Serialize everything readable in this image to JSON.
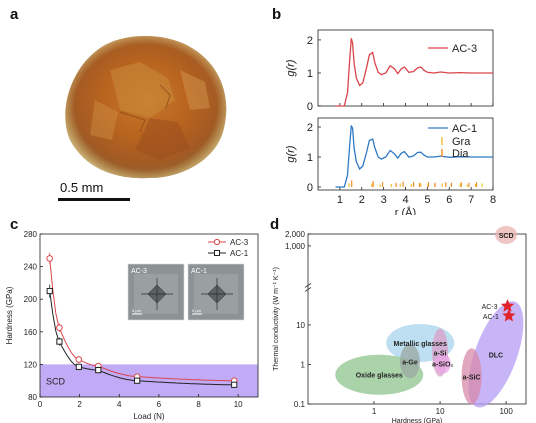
{
  "panels": {
    "a": {
      "label": "a",
      "scale_bar_text": "0.5 mm"
    },
    "b": {
      "label": "b"
    },
    "c": {
      "label": "c"
    },
    "d": {
      "label": "d"
    }
  },
  "chart_data": [
    {
      "type": "line",
      "panel": "b-top",
      "ylabel": "g(r)",
      "xlim": [
        0,
        8
      ],
      "ylim": [
        0,
        2.3
      ],
      "yticks": [
        0,
        1,
        2
      ],
      "series": [
        {
          "name": "AC-3",
          "color": "#d9454a",
          "x": [
            0.8,
            1.2,
            1.35,
            1.45,
            1.52,
            1.58,
            1.65,
            1.75,
            1.9,
            2.05,
            2.2,
            2.35,
            2.5,
            2.6,
            2.75,
            2.9,
            3.1,
            3.3,
            3.5,
            3.65,
            3.8,
            3.95,
            4.15,
            4.35,
            4.55,
            4.7,
            4.85,
            5.0,
            5.3,
            5.6,
            6.0,
            6.5,
            7.0,
            7.5,
            8.0
          ],
          "y": [
            0,
            0,
            0.4,
            1.4,
            2.05,
            1.9,
            1.3,
            0.85,
            0.62,
            0.7,
            1.1,
            1.55,
            1.62,
            1.3,
            1.02,
            0.95,
            1.0,
            1.22,
            1.12,
            0.98,
            1.12,
            1.18,
            1.02,
            1.04,
            1.15,
            1.18,
            1.08,
            1.02,
            1.0,
            1.03,
            1.0,
            1.01,
            1.0,
            1.0,
            1.0
          ]
        }
      ]
    },
    {
      "type": "line",
      "panel": "b-bottom",
      "xlabel": "r (Å)",
      "ylabel": "g(r)",
      "xlim": [
        0,
        8
      ],
      "ylim": [
        -0.1,
        2.3
      ],
      "xticks": [
        1,
        2,
        3,
        4,
        5,
        6,
        7,
        8
      ],
      "yticks": [
        0,
        1,
        2
      ],
      "series": [
        {
          "name": "AC-1",
          "color": "#2f78c4",
          "x": [
            0.8,
            1.2,
            1.35,
            1.45,
            1.52,
            1.58,
            1.65,
            1.75,
            1.9,
            2.05,
            2.2,
            2.35,
            2.5,
            2.6,
            2.75,
            2.9,
            3.1,
            3.3,
            3.5,
            3.65,
            3.8,
            3.95,
            4.15,
            4.35,
            4.55,
            4.7,
            4.85,
            5.0,
            5.3,
            5.6,
            6.0,
            6.5,
            7.0,
            7.5,
            8.0
          ],
          "y": [
            0,
            0,
            0.4,
            1.4,
            2.05,
            1.95,
            1.3,
            0.85,
            0.6,
            0.7,
            1.1,
            1.55,
            1.6,
            1.3,
            1.0,
            0.93,
            1.0,
            1.22,
            1.1,
            0.96,
            1.12,
            1.18,
            1.0,
            1.03,
            1.15,
            1.16,
            1.06,
            1.0,
            1.0,
            1.03,
            0.99,
            1.01,
            1.0,
            1.0,
            1.0
          ]
        },
        {
          "name": "Gra",
          "color": "#f2c12e",
          "type": "stick",
          "x": [
            1.42,
            2.46,
            2.84,
            3.35,
            3.76,
            4.26,
            4.7,
            5.02,
            5.34,
            5.68,
            6.1,
            6.5,
            6.82,
            7.2,
            7.5
          ],
          "h": [
            0.12,
            0.12,
            0.08,
            0.1,
            0.12,
            0.1,
            0.12,
            0.08,
            0.1,
            0.12,
            0.1,
            0.12,
            0.08,
            0.1,
            0.12
          ]
        },
        {
          "name": "Dia",
          "color": "#f28c28",
          "type": "stick",
          "x": [
            1.54,
            2.52,
            2.95,
            3.57,
            3.89,
            4.37,
            4.64,
            5.05,
            5.35,
            5.84,
            6.1,
            6.55,
            6.9,
            7.25
          ],
          "h": [
            0.22,
            0.2,
            0.16,
            0.14,
            0.18,
            0.16,
            0.14,
            0.16,
            0.14,
            0.16,
            0.14,
            0.16,
            0.14,
            0.16
          ]
        }
      ],
      "legend_position": "top-right"
    },
    {
      "type": "scatter",
      "panel": "c",
      "xlabel": "Load (N)",
      "ylabel": "Hardness (GPa)",
      "xlim": [
        0,
        11
      ],
      "ylim": [
        80,
        280
      ],
      "xticks": [
        0,
        2,
        4,
        6,
        8,
        10
      ],
      "yticks": [
        80,
        120,
        160,
        200,
        240,
        280
      ],
      "shaded_band": {
        "label": "SCD",
        "y": [
          80,
          120
        ],
        "color": "#b79cf5"
      },
      "series": [
        {
          "name": "AC-3",
          "color": "#d9454a",
          "marker": "circle",
          "x": [
            0.49,
            0.98,
            1.96,
            2.94,
            4.9,
            9.8
          ],
          "y": [
            250,
            165,
            126,
            118,
            105,
            100
          ],
          "err": [
            7,
            5,
            4,
            4,
            3,
            3
          ]
        },
        {
          "name": "AC-1",
          "color": "#222222",
          "marker": "square",
          "x": [
            0.49,
            0.98,
            1.96,
            2.94,
            4.9,
            9.8
          ],
          "y": [
            210,
            148,
            117,
            113,
            100,
            95
          ],
          "err": [
            8,
            5,
            4,
            4,
            3,
            3
          ]
        }
      ],
      "legend_position": "top-right",
      "insets": [
        {
          "label": "AC-3",
          "scale": "5 μm"
        },
        {
          "label": "AC-1",
          "scale": "5 μm"
        }
      ]
    },
    {
      "type": "scatter",
      "panel": "d",
      "xlabel": "Hardness (GPa)",
      "ylabel": "Thermal conductivity (W m⁻¹ K⁻¹)",
      "xscale": "log",
      "yscale": "log",
      "xlim": [
        0.1,
        200
      ],
      "ylim": [
        0.1,
        2000
      ],
      "xticks": [
        1,
        10,
        100
      ],
      "xticklabels": [
        "1",
        "10",
        "100"
      ],
      "yticks": [
        0.1,
        1,
        10,
        1000,
        2000
      ],
      "yticklabels": [
        "0.1",
        "1",
        "10",
        "1,000",
        "2,000"
      ],
      "regions": [
        {
          "label": "Metallic glasses",
          "cx": 5,
          "cy": 3.5,
          "color": "#a8d3ee"
        },
        {
          "label": "Oxide glasses",
          "cx": 1.2,
          "cy": 0.55,
          "color": "#8fc48e"
        },
        {
          "label": "a-Ge",
          "cx": 3.5,
          "cy": 1.2,
          "color": "#9aa8a0"
        },
        {
          "label": "a-Si",
          "cx": 10,
          "cy": 2.0,
          "color": "#d9a0c8"
        },
        {
          "label": "a-SiO₂",
          "cx": 11,
          "cy": 1.05,
          "color": "#e9a4e6"
        },
        {
          "label": "DLC",
          "cx": 70,
          "cy": 1.8,
          "color": "#b69cf6"
        },
        {
          "label": "a-SiC",
          "cx": 30,
          "cy": 0.5,
          "color": "#d58aa8"
        },
        {
          "label": "SCD",
          "cx": 100,
          "cy": 1900,
          "color": "#e8b4b0"
        }
      ],
      "series": [
        {
          "name": "AC-3",
          "marker": "star",
          "color": "#e0232b",
          "x": [
            105
          ],
          "y": [
            30
          ]
        },
        {
          "name": "AC-1",
          "marker": "star",
          "color": "#e0232b",
          "x": [
            110
          ],
          "y": [
            17
          ]
        }
      ]
    }
  ]
}
